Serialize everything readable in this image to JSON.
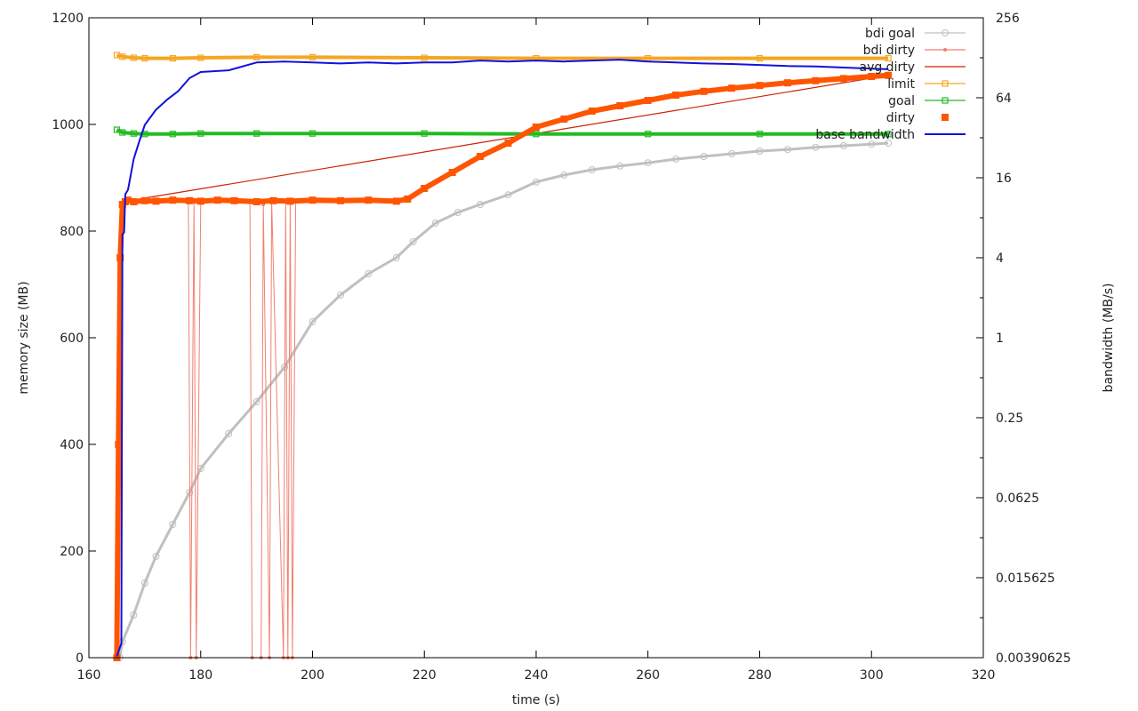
{
  "chart_data": {
    "type": "line",
    "title": "",
    "xlabel": "time (s)",
    "ylabel": "memory size (MB)",
    "y2label": "bandwidth (MB/s)",
    "xlim": [
      160,
      320
    ],
    "ylim": [
      0,
      1200
    ],
    "y2lim": [
      0.00390625,
      256
    ],
    "y2scale": "log2",
    "grid": false,
    "legend_position": "top-right",
    "x_ticks": [
      "160",
      "180",
      "200",
      "220",
      "240",
      "260",
      "280",
      "300",
      "320"
    ],
    "y_ticks": [
      "0",
      "200",
      "400",
      "600",
      "800",
      "1000",
      "1200"
    ],
    "y2_ticks": [
      "0.00390625",
      "0.015625",
      "0.0625",
      "0.25",
      "1",
      "4",
      "16",
      "64",
      "256"
    ],
    "series": [
      {
        "name": "bdi goal",
        "color": "#c0c0c0",
        "marker": "circle",
        "x": [
          165.5,
          166,
          168,
          170,
          172,
          175,
          178,
          180,
          185,
          190,
          195,
          200,
          205,
          210,
          215,
          218,
          222,
          226,
          230,
          235,
          240,
          245,
          250,
          255,
          260,
          265,
          270,
          275,
          280,
          285,
          290,
          295,
          300,
          303
        ],
        "y": [
          0,
          30,
          80,
          140,
          190,
          250,
          310,
          355,
          420,
          480,
          545,
          630,
          680,
          720,
          750,
          780,
          815,
          835,
          850,
          868,
          892,
          905,
          915,
          922,
          928,
          935,
          940,
          945,
          950,
          953,
          957,
          960,
          963,
          965
        ]
      },
      {
        "name": "bdi dirty",
        "color": "#f08070",
        "marker": "dot",
        "x": [
          165,
          165.3,
          165.6,
          166,
          166.5,
          167,
          168,
          170,
          172,
          175,
          177.8,
          178.2,
          178.8,
          179.2,
          180,
          183,
          186,
          188.8,
          189.2,
          190.8,
          191.2,
          192.3,
          192.7,
          194.8,
          195.2,
          195.6,
          196,
          196.4,
          197,
          200,
          205,
          210,
          215,
          220,
          225,
          230,
          235,
          240,
          245,
          250,
          255,
          260,
          265,
          270,
          275,
          280,
          285,
          290,
          295,
          300,
          303
        ],
        "y": [
          0,
          300,
          700,
          850,
          855,
          856,
          855,
          857,
          858,
          856,
          855,
          0,
          855,
          0,
          855,
          857,
          858,
          856,
          0,
          0,
          850,
          0,
          855,
          0,
          855,
          0,
          855,
          0,
          856,
          858,
          857,
          858,
          856,
          880,
          910,
          940,
          965,
          995,
          1010,
          1025,
          1035,
          1045,
          1055,
          1062,
          1068,
          1073,
          1078,
          1082,
          1086,
          1090,
          1092
        ]
      },
      {
        "name": "avg dirty",
        "color": "#cc2200",
        "marker": "none",
        "x": [
          166,
          303
        ],
        "y": [
          855,
          1092
        ]
      },
      {
        "name": "limit",
        "color": "#f5a623",
        "marker": "square-open",
        "x": [
          165,
          166,
          168,
          170,
          175,
          180,
          190,
          200,
          220,
          240,
          260,
          280,
          303
        ],
        "y": [
          1130,
          1127,
          1125,
          1124,
          1124,
          1125,
          1126,
          1126,
          1125,
          1124,
          1124,
          1124,
          1124
        ]
      },
      {
        "name": "goal",
        "color": "#22bb22",
        "marker": "square-open",
        "x": [
          165,
          166,
          168,
          170,
          175,
          180,
          190,
          200,
          220,
          240,
          260,
          280,
          303
        ],
        "y": [
          990,
          985,
          983,
          982,
          982,
          983,
          983,
          983,
          983,
          982,
          982,
          982,
          982
        ]
      },
      {
        "name": "dirty",
        "color": "#ff5500",
        "marker": "square",
        "x": [
          165,
          165.3,
          165.6,
          166,
          166.5,
          167,
          168,
          170,
          172,
          175,
          178,
          180,
          183,
          186,
          190,
          193,
          196,
          200,
          205,
          210,
          215,
          217,
          220,
          225,
          230,
          235,
          240,
          245,
          250,
          255,
          260,
          265,
          270,
          275,
          280,
          285,
          290,
          295,
          300,
          303
        ],
        "y": [
          0,
          400,
          750,
          850,
          855,
          858,
          855,
          857,
          856,
          858,
          857,
          856,
          858,
          857,
          855,
          857,
          856,
          858,
          857,
          858,
          856,
          860,
          880,
          910,
          940,
          965,
          995,
          1010,
          1025,
          1035,
          1045,
          1055,
          1062,
          1068,
          1073,
          1078,
          1082,
          1086,
          1090,
          1092
        ]
      },
      {
        "name": "base bandwidth",
        "color": "#1111dd",
        "marker": "none",
        "axis": "y2",
        "x": [
          165,
          165.8,
          166,
          166.3,
          166.5,
          167,
          168,
          169,
          170,
          172,
          174,
          176,
          178,
          180,
          185,
          190,
          195,
          200,
          205,
          210,
          215,
          220,
          225,
          230,
          235,
          240,
          245,
          250,
          255,
          260,
          265,
          270,
          275,
          280,
          285,
          290,
          295,
          300,
          303
        ],
        "y": [
          0.004,
          0.005,
          6,
          6.2,
          12,
          13,
          22,
          30,
          40,
          52,
          62,
          72,
          90,
          100,
          103,
          118,
          120,
          118,
          116,
          118,
          116,
          118,
          118,
          122,
          120,
          122,
          120,
          122,
          124,
          120,
          118,
          116,
          115,
          113,
          111,
          110,
          108,
          106,
          105
        ]
      }
    ]
  }
}
